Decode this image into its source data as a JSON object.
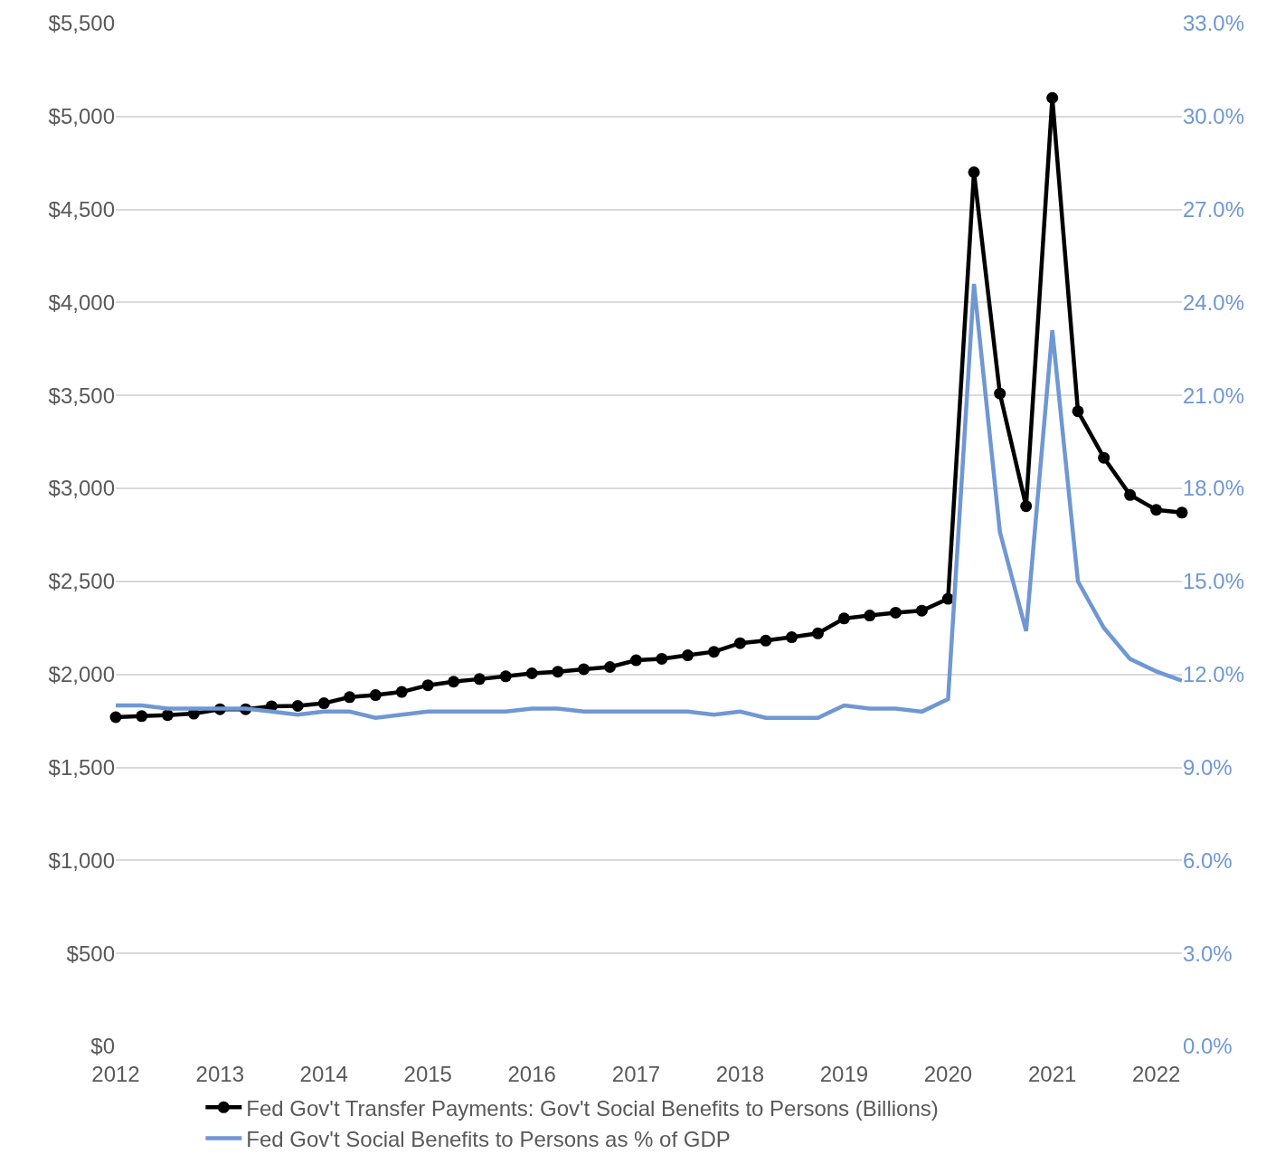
{
  "chart_data": {
    "type": "line",
    "x": [
      "2012-01",
      "2012-04",
      "2012-07",
      "2012-10",
      "2013-01",
      "2013-04",
      "2013-07",
      "2013-10",
      "2014-01",
      "2014-04",
      "2014-07",
      "2014-10",
      "2015-01",
      "2015-04",
      "2015-07",
      "2015-10",
      "2016-01",
      "2016-04",
      "2016-07",
      "2016-10",
      "2017-01",
      "2017-04",
      "2017-07",
      "2017-10",
      "2018-01",
      "2018-04",
      "2018-07",
      "2018-10",
      "2019-01",
      "2019-04",
      "2019-07",
      "2019-10",
      "2020-01",
      "2020-04",
      "2020-07",
      "2020-10",
      "2021-01",
      "2021-04",
      "2021-07",
      "2021-10",
      "2022-01",
      "2022-04"
    ],
    "series": [
      {
        "name": "Fed Gov't Transfer Payments: Gov't Social Benefits to Persons (Billions)",
        "color": "#000000",
        "marker": "circle",
        "values": [
          1770,
          1776,
          1781,
          1789,
          1813,
          1813,
          1829,
          1831,
          1845,
          1878,
          1889,
          1906,
          1942,
          1961,
          1975,
          1990,
          2006,
          2015,
          2028,
          2040,
          2076,
          2084,
          2103,
          2122,
          2168,
          2182,
          2200,
          2221,
          2301,
          2317,
          2332,
          2343,
          2407,
          4700,
          3510,
          2905,
          5100,
          3415,
          3165,
          2965,
          2885,
          2870
        ]
      },
      {
        "name": "Fed Gov't Social Benefits to Persons as % of GDP",
        "color": "#6f97d3",
        "axis": "y2",
        "marker": "none",
        "values": [
          11.0,
          11.0,
          10.9,
          10.9,
          10.9,
          10.9,
          10.8,
          10.7,
          10.8,
          10.8,
          10.6,
          10.7,
          10.8,
          10.8,
          10.8,
          10.8,
          10.9,
          10.9,
          10.8,
          10.8,
          10.8,
          10.8,
          10.8,
          10.7,
          10.8,
          10.6,
          10.6,
          10.6,
          11.0,
          10.9,
          10.9,
          10.8,
          11.2,
          24.6,
          16.6,
          13.4,
          23.1,
          15.0,
          13.5,
          12.5,
          12.1,
          11.8
        ]
      }
    ],
    "xlim": [
      "2012-01",
      "2022-04"
    ],
    "xticks": [
      {
        "value": "2012-01",
        "label": "2012"
      },
      {
        "value": "2013-01",
        "label": "2013"
      },
      {
        "value": "2014-01",
        "label": "2014"
      },
      {
        "value": "2015-01",
        "label": "2015"
      },
      {
        "value": "2016-01",
        "label": "2016"
      },
      {
        "value": "2017-01",
        "label": "2017"
      },
      {
        "value": "2018-01",
        "label": "2018"
      },
      {
        "value": "2019-01",
        "label": "2019"
      },
      {
        "value": "2020-01",
        "label": "2020"
      },
      {
        "value": "2021-01",
        "label": "2021"
      },
      {
        "value": "2022-01",
        "label": "2022"
      }
    ],
    "ylim": [
      0,
      5500
    ],
    "yticks": [
      {
        "value": 0,
        "label": "$0"
      },
      {
        "value": 500,
        "label": "$500"
      },
      {
        "value": 1000,
        "label": "$1,000"
      },
      {
        "value": 1500,
        "label": "$1,500"
      },
      {
        "value": 2000,
        "label": "$2,000"
      },
      {
        "value": 2500,
        "label": "$2,500"
      },
      {
        "value": 3000,
        "label": "$3,000"
      },
      {
        "value": 3500,
        "label": "$3,500"
      },
      {
        "value": 4000,
        "label": "$4,000"
      },
      {
        "value": 4500,
        "label": "$4,500"
      },
      {
        "value": 5000,
        "label": "$5,000"
      },
      {
        "value": 5500,
        "label": "$5,500"
      }
    ],
    "y2lim": [
      0,
      33
    ],
    "y2ticks": [
      {
        "value": 0,
        "label": "0.0%"
      },
      {
        "value": 3,
        "label": "3.0%"
      },
      {
        "value": 6,
        "label": "6.0%"
      },
      {
        "value": 9,
        "label": "9.0%"
      },
      {
        "value": 12,
        "label": "12.0%"
      },
      {
        "value": 15,
        "label": "15.0%"
      },
      {
        "value": 18,
        "label": "18.0%"
      },
      {
        "value": 21,
        "label": "21.0%"
      },
      {
        "value": 24,
        "label": "24.0%"
      },
      {
        "value": 27,
        "label": "27.0%"
      },
      {
        "value": 30,
        "label": "30.0%"
      },
      {
        "value": 33,
        "label": "33.0%"
      }
    ],
    "grid": "y",
    "legend": "bottom",
    "line_style": "solid"
  }
}
